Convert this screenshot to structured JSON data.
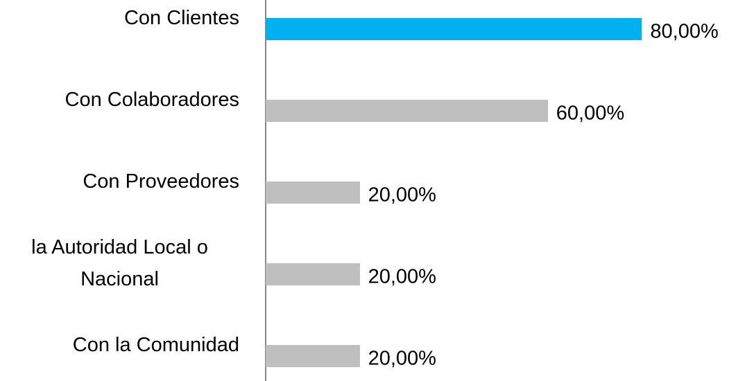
{
  "chart_data": {
    "type": "bar",
    "orientation": "horizontal",
    "categories": [
      "Con Clientes",
      "Con Colaboradores",
      "Con Proveedores",
      "la Autoridad Local o Nacional",
      "Con la Comunidad"
    ],
    "values": [
      80,
      60,
      20,
      20,
      20
    ],
    "value_labels": [
      "80,00%",
      "60,00%",
      "20,00%",
      "20,00%",
      "20,00%"
    ],
    "colors": [
      "#00b0f0",
      "#bfbfbf",
      "#bfbfbf",
      "#bfbfbf",
      "#bfbfbf"
    ],
    "xlim": [
      0,
      100
    ]
  }
}
